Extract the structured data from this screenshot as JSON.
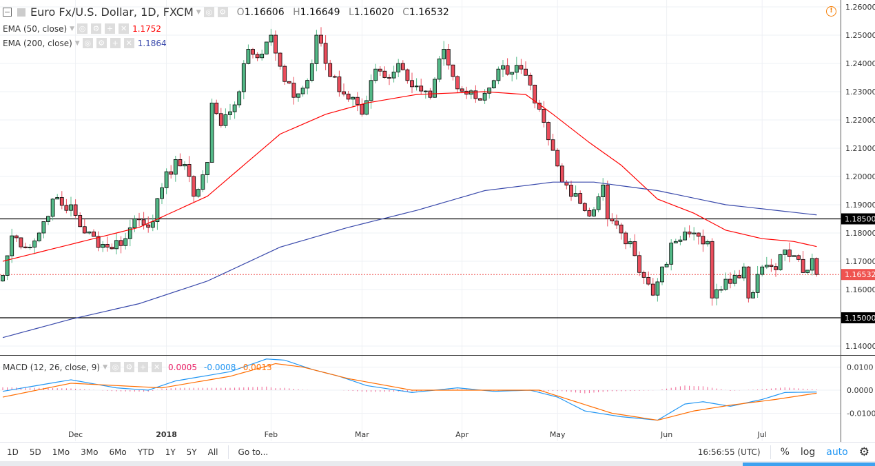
{
  "header": {
    "symbol": "Euro Fx/U.S. Dollar, 1D, FXCM",
    "open_label": "O",
    "open": "1.16606",
    "high_label": "H",
    "high": "1.16649",
    "low_label": "L",
    "low": "1.16020",
    "close_label": "C",
    "close": "1.16532"
  },
  "indicators": [
    {
      "label": "EMA (50, close)",
      "value": "1.1752",
      "color": "#ff0000"
    },
    {
      "label": "EMA (200, close)",
      "value": "1.1864",
      "color": "#3949ab"
    }
  ],
  "macd": {
    "label": "MACD (12, 26, close, 9)",
    "hist": "0.0005",
    "macd": "-0.0008",
    "signal": "-0.0013",
    "hist_color": "#e91e63",
    "macd_color": "#2196f3",
    "signal_color": "#ff6d00"
  },
  "price_axis": {
    "ticks": [
      "1.26000",
      "1.25000",
      "1.24000",
      "1.23000",
      "1.22000",
      "1.21000",
      "1.20000",
      "1.19000",
      "1.18000",
      "1.17000",
      "1.16000",
      "1.14000"
    ],
    "tick_values": [
      1.26,
      1.25,
      1.24,
      1.23,
      1.22,
      1.21,
      1.2,
      1.19,
      1.18,
      1.17,
      1.16,
      1.14
    ],
    "levels": [
      {
        "label": "1.18500",
        "value": 1.185
      },
      {
        "label": "1.15000",
        "value": 1.15
      }
    ],
    "last": {
      "label": "1.16532",
      "value": 1.16532
    }
  },
  "macd_axis": {
    "ticks": [
      "0.0100",
      "0.0000",
      "-0.0100"
    ],
    "tick_values": [
      0.01,
      0,
      -0.01
    ]
  },
  "time_axis": [
    {
      "label": "Dec",
      "bar": 16
    },
    {
      "label": "2018",
      "bar": 36
    },
    {
      "label": "Feb",
      "bar": 59
    },
    {
      "label": "Mar",
      "bar": 79
    },
    {
      "label": "Apr",
      "bar": 101
    },
    {
      "label": "May",
      "bar": 122
    },
    {
      "label": "Jun",
      "bar": 146
    },
    {
      "label": "Jul",
      "bar": 167
    }
  ],
  "toolbar": {
    "ranges": [
      "1D",
      "5D",
      "1Mo",
      "3Mo",
      "6Mo",
      "YTD",
      "1Y",
      "5Y",
      "All"
    ],
    "goto": "Go to...",
    "time": "16:56:55 (UTC)",
    "percent": "%",
    "log": "log",
    "auto": "auto"
  },
  "chart_data": {
    "type": "candlestick",
    "bars": 180,
    "close_waypoints": [
      [
        0,
        1.165
      ],
      [
        2,
        1.179
      ],
      [
        6,
        1.175
      ],
      [
        8,
        1.18
      ],
      [
        11,
        1.192
      ],
      [
        14,
        1.188
      ],
      [
        15,
        1.19
      ],
      [
        18,
        1.18
      ],
      [
        23,
        1.175
      ],
      [
        27,
        1.178
      ],
      [
        29,
        1.185
      ],
      [
        33,
        1.184
      ],
      [
        35,
        1.196
      ],
      [
        38,
        1.206
      ],
      [
        41,
        1.2
      ],
      [
        42,
        1.193
      ],
      [
        45,
        1.205
      ],
      [
        46,
        1.226
      ],
      [
        48,
        1.218
      ],
      [
        52,
        1.23
      ],
      [
        54,
        1.245
      ],
      [
        56,
        1.242
      ],
      [
        59,
        1.25
      ],
      [
        61,
        1.239
      ],
      [
        64,
        1.228
      ],
      [
        67,
        1.234
      ],
      [
        69,
        1.25
      ],
      [
        71,
        1.24
      ],
      [
        74,
        1.23
      ],
      [
        77,
        1.228
      ],
      [
        79,
        1.222
      ],
      [
        82,
        1.238
      ],
      [
        84,
        1.235
      ],
      [
        87,
        1.24
      ],
      [
        91,
        1.232
      ],
      [
        94,
        1.228
      ],
      [
        97,
        1.245
      ],
      [
        100,
        1.231
      ],
      [
        105,
        1.227
      ],
      [
        109,
        1.238
      ],
      [
        114,
        1.238
      ],
      [
        117,
        1.226
      ],
      [
        120,
        1.213
      ],
      [
        123,
        1.198
      ],
      [
        126,
        1.194
      ],
      [
        129,
        1.186
      ],
      [
        132,
        1.197
      ],
      [
        133,
        1.185
      ],
      [
        136,
        1.18
      ],
      [
        139,
        1.172
      ],
      [
        143,
        1.158
      ],
      [
        145,
        1.168
      ],
      [
        148,
        1.177
      ],
      [
        152,
        1.18
      ],
      [
        155,
        1.177
      ],
      [
        156,
        1.157
      ],
      [
        158,
        1.16
      ],
      [
        161,
        1.165
      ],
      [
        163,
        1.168
      ],
      [
        164,
        1.157
      ],
      [
        167,
        1.168
      ],
      [
        170,
        1.167
      ],
      [
        172,
        1.174
      ],
      [
        174,
        1.172
      ],
      [
        176,
        1.166
      ],
      [
        178,
        1.171
      ],
      [
        179,
        1.16532
      ]
    ],
    "ema50_waypoints": [
      [
        0,
        1.17
      ],
      [
        20,
        1.178
      ],
      [
        30,
        1.182
      ],
      [
        45,
        1.193
      ],
      [
        61,
        1.215
      ],
      [
        71,
        1.222
      ],
      [
        80,
        1.226
      ],
      [
        91,
        1.229
      ],
      [
        106,
        1.23
      ],
      [
        115,
        1.229
      ],
      [
        121,
        1.222
      ],
      [
        129,
        1.212
      ],
      [
        136,
        1.204
      ],
      [
        144,
        1.192
      ],
      [
        152,
        1.187
      ],
      [
        159,
        1.181
      ],
      [
        167,
        1.178
      ],
      [
        174,
        1.177
      ],
      [
        179,
        1.1752
      ]
    ],
    "ema200_waypoints": [
      [
        0,
        1.143
      ],
      [
        15,
        1.1495
      ],
      [
        30,
        1.155
      ],
      [
        45,
        1.163
      ],
      [
        61,
        1.175
      ],
      [
        76,
        1.182
      ],
      [
        91,
        1.188
      ],
      [
        106,
        1.195
      ],
      [
        121,
        1.198
      ],
      [
        130,
        1.198
      ],
      [
        144,
        1.195
      ],
      [
        159,
        1.19
      ],
      [
        179,
        1.1864
      ]
    ],
    "macd_waypoints": [
      [
        0,
        -0.0005
      ],
      [
        15,
        0.0045
      ],
      [
        25,
        0.001
      ],
      [
        32,
        0.0
      ],
      [
        38,
        0.004
      ],
      [
        50,
        0.008
      ],
      [
        58,
        0.0135
      ],
      [
        62,
        0.013
      ],
      [
        68,
        0.009
      ],
      [
        74,
        0.006
      ],
      [
        80,
        0.002
      ],
      [
        90,
        -0.001
      ],
      [
        100,
        0.001
      ],
      [
        108,
        -0.0005
      ],
      [
        116,
        0.0
      ],
      [
        122,
        -0.003
      ],
      [
        128,
        -0.009
      ],
      [
        136,
        -0.0115
      ],
      [
        144,
        -0.013
      ],
      [
        150,
        -0.006
      ],
      [
        154,
        -0.005
      ],
      [
        160,
        -0.007
      ],
      [
        167,
        -0.004
      ],
      [
        172,
        -0.001
      ],
      [
        179,
        -0.0008
      ]
    ],
    "signal_waypoints": [
      [
        0,
        -0.003
      ],
      [
        15,
        0.003
      ],
      [
        25,
        0.002
      ],
      [
        35,
        0.001
      ],
      [
        50,
        0.006
      ],
      [
        60,
        0.0115
      ],
      [
        66,
        0.01
      ],
      [
        76,
        0.005
      ],
      [
        90,
        0.0
      ],
      [
        105,
        0.0
      ],
      [
        118,
        0.0
      ],
      [
        126,
        -0.005
      ],
      [
        134,
        -0.01
      ],
      [
        144,
        -0.013
      ],
      [
        152,
        -0.009
      ],
      [
        160,
        -0.0065
      ],
      [
        170,
        -0.004
      ],
      [
        179,
        -0.0013
      ]
    ]
  }
}
